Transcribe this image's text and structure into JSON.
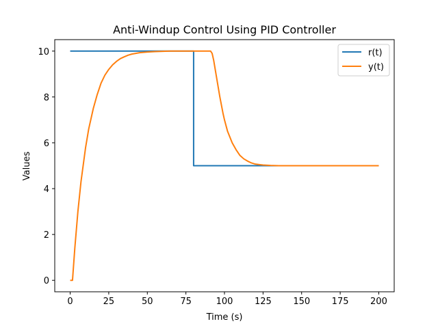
{
  "chart_data": {
    "type": "line",
    "title": "Anti-Windup Control Using PID Controller",
    "xlabel": "Time (s)",
    "ylabel": "Values",
    "xlim": [
      -10,
      210
    ],
    "ylim": [
      -0.5,
      10.5
    ],
    "xticks": [
      0,
      25,
      50,
      75,
      100,
      125,
      150,
      175,
      200
    ],
    "yticks": [
      0,
      2,
      4,
      6,
      8,
      10
    ],
    "grid": false,
    "legend_position": "top-right",
    "series": [
      {
        "name": "r(t)",
        "color": "#1f77b4",
        "x": [
          0,
          80,
          80,
          200
        ],
        "y": [
          10,
          10,
          5,
          5
        ]
      },
      {
        "name": "y(t)",
        "color": "#ff7f0e",
        "x": [
          0,
          1.5,
          3,
          5,
          7,
          10,
          12,
          15,
          17.5,
          20,
          22.5,
          25,
          27.5,
          30,
          32.5,
          35,
          37.5,
          40,
          45,
          50,
          55,
          60,
          65,
          70,
          75,
          80,
          85,
          89,
          90,
          91,
          92,
          93,
          95,
          97,
          99,
          100,
          102,
          105,
          107.5,
          110,
          112.5,
          115,
          117.5,
          120,
          125,
          130,
          135,
          140,
          150,
          200
        ],
        "y": [
          0,
          0,
          1.4,
          3.0,
          4.3,
          5.8,
          6.6,
          7.5,
          8.1,
          8.6,
          8.95,
          9.2,
          9.4,
          9.55,
          9.67,
          9.75,
          9.82,
          9.87,
          9.93,
          9.96,
          9.98,
          9.99,
          10.0,
          10.0,
          10.0,
          10.0,
          10.0,
          10.0,
          10.0,
          10.0,
          9.9,
          9.6,
          8.8,
          8.0,
          7.3,
          7.0,
          6.5,
          6.0,
          5.7,
          5.45,
          5.3,
          5.2,
          5.12,
          5.07,
          5.03,
          5.01,
          5.0,
          5.0,
          5.0,
          5.0
        ]
      }
    ]
  }
}
